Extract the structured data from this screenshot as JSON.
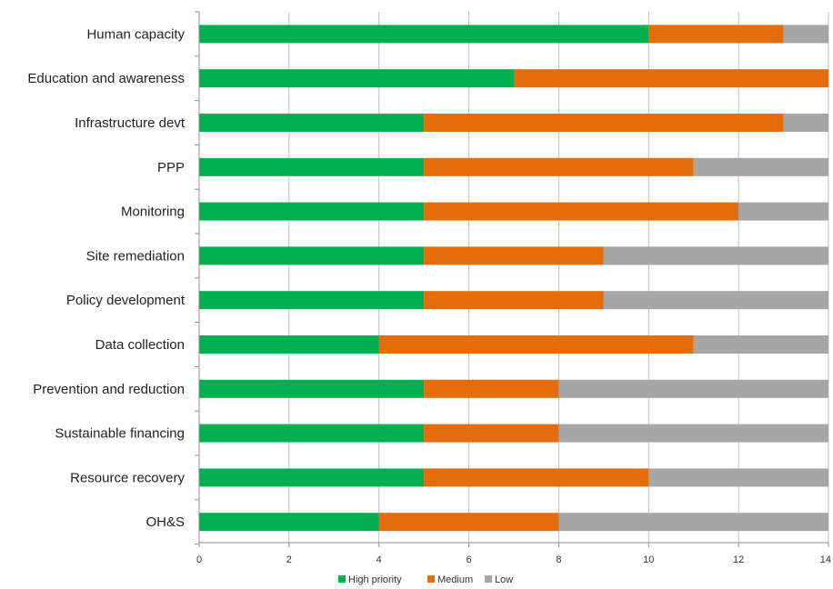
{
  "chart_data": {
    "type": "bar",
    "orientation": "horizontal",
    "stacked": true,
    "categories": [
      "Human capacity",
      "Education and awareness",
      "Infrastructure devt",
      "PPP",
      "Monitoring",
      "Site remediation",
      "Policy development",
      "Data collection",
      "Prevention and reduction",
      "Sustainable financing",
      "Resource recovery",
      "OH&S"
    ],
    "series": [
      {
        "name": "High priority",
        "color": "#00b050",
        "values": [
          10,
          7,
          5,
          5,
          5,
          5,
          5,
          4,
          5,
          5,
          5,
          4
        ]
      },
      {
        "name": "Medium",
        "color": "#e46c0a",
        "values": [
          3,
          7,
          8,
          6,
          7,
          4,
          4,
          7,
          3,
          3,
          5,
          4
        ]
      },
      {
        "name": "Low",
        "color": "#a6a6a6",
        "values": [
          1,
          0,
          1,
          3,
          2,
          5,
          5,
          3,
          6,
          6,
          4,
          6
        ]
      }
    ],
    "xlim": [
      0,
      14
    ],
    "xticks": [
      "0",
      "2",
      "4",
      "6",
      "8",
      "10",
      "12",
      "14"
    ],
    "grid": "vertical",
    "legend_position": "bottom"
  }
}
